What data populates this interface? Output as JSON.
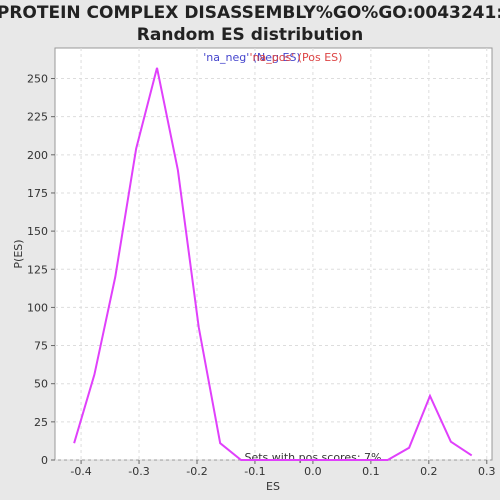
{
  "chart_data": {
    "type": "line",
    "title_lines": [
      "PROTEIN COMPLEX DISASSEMBLY%GO%GO:0043241:",
      "Random ES distribution"
    ],
    "x_label": "ES",
    "y_label": "P(ES)",
    "annotation": "Sets with pos scores: 7%",
    "legend": [
      {
        "text": "'na_neg' (Neg ES)",
        "color": "#4444cc"
      },
      {
        "text": "'na_pos' (Pos ES)",
        "color": "#dd4444"
      }
    ],
    "x": [
      -0.412,
      -0.377,
      -0.341,
      -0.305,
      -0.269,
      -0.233,
      -0.197,
      -0.16,
      -0.124,
      -0.088,
      -0.052,
      -0.016,
      0.02,
      0.057,
      0.093,
      0.129,
      0.166,
      0.202,
      0.238,
      0.274
    ],
    "series": [
      {
        "color": "#e040fb",
        "values": [
          11,
          56,
          120,
          204,
          257,
          190,
          87,
          11,
          0,
          0,
          0,
          0,
          0,
          0,
          0,
          0,
          8,
          42,
          12,
          3
        ]
      }
    ],
    "xlim": [
      -0.445,
      0.309
    ],
    "ylim": [
      0,
      270
    ],
    "xticks": [
      -0.4,
      -0.3,
      -0.2,
      -0.1,
      {
        "value": 0,
        "label": "0.0"
      },
      0.1,
      0.2,
      0.3
    ],
    "yticks": [
      0,
      25,
      50,
      75,
      100,
      125,
      150,
      175,
      200,
      225,
      250
    ],
    "grid": true
  }
}
